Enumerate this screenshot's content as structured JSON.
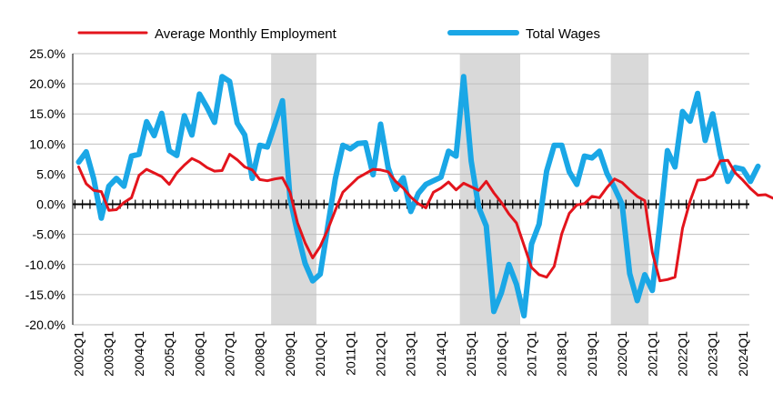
{
  "chart_data": {
    "type": "line",
    "title": "",
    "xlabel": "",
    "ylabel": "",
    "ylim": [
      -0.2,
      0.25
    ],
    "yticks": [
      "25.0%",
      "20.0%",
      "15.0%",
      "10.0%",
      "5.0%",
      "0.0%",
      "-5.0%",
      "-10.0%",
      "-15.0%",
      "-20.0%"
    ],
    "x_labels": [
      "2002Q1",
      "2003Q1",
      "2004Q1",
      "2005Q1",
      "2006Q1",
      "2007Q1",
      "2008Q1",
      "2009Q1",
      "2010Q1",
      "2011Q1",
      "2012Q1",
      "2013Q1",
      "2014Q1",
      "2015Q1",
      "2016Q1",
      "2017Q1",
      "2018Q1",
      "2019Q1",
      "2020Q1",
      "2021Q1",
      "2022Q1",
      "2023Q1",
      "2024Q1"
    ],
    "legend_position": "top",
    "grid": "horizontal",
    "recessions": [
      {
        "start": "2008Q3",
        "end": "2009Q4"
      },
      {
        "start": "2014Q4",
        "end": "2016Q3"
      },
      {
        "start": "2019Q4",
        "end": "2020Q4"
      }
    ],
    "series": [
      {
        "name": "Average Monthly Employment",
        "color": "#e3141c",
        "values": [
          0.062,
          0.034,
          0.023,
          0.021,
          -0.01,
          -0.009,
          0.003,
          0.011,
          0.048,
          0.058,
          0.052,
          0.046,
          0.033,
          0.052,
          0.065,
          0.076,
          0.07,
          0.061,
          0.055,
          0.056,
          0.083,
          0.074,
          0.062,
          0.057,
          0.041,
          0.039,
          0.042,
          0.044,
          0.02,
          -0.031,
          -0.064,
          -0.089,
          -0.07,
          -0.042,
          -0.01,
          0.02,
          0.032,
          0.044,
          0.051,
          0.058,
          0.057,
          0.054,
          0.038,
          0.027,
          0.012,
          0.001,
          -0.006,
          0.02,
          0.027,
          0.037,
          0.024,
          0.035,
          0.029,
          0.023,
          0.038,
          0.019,
          0.003,
          -0.016,
          -0.031,
          -0.068,
          -0.105,
          -0.117,
          -0.121,
          -0.103,
          -0.049,
          -0.015,
          -0.001,
          0.001,
          0.013,
          0.011,
          0.028,
          0.042,
          0.036,
          0.024,
          0.013,
          0.006,
          -0.08,
          -0.127,
          -0.125,
          -0.121,
          -0.04,
          0.005,
          0.04,
          0.041,
          0.048,
          0.072,
          0.073,
          0.052,
          0.04,
          0.026,
          0.015,
          0.016,
          0.01,
          0.012
        ]
      },
      {
        "name": "Total Wages",
        "color": "#1aa7e6",
        "values": [
          0.07,
          0.087,
          0.042,
          -0.023,
          0.03,
          0.043,
          0.03,
          0.08,
          0.083,
          0.137,
          0.114,
          0.151,
          0.089,
          0.081,
          0.147,
          0.115,
          0.183,
          0.161,
          0.136,
          0.212,
          0.204,
          0.135,
          0.115,
          0.043,
          0.098,
          0.095,
          0.133,
          0.172,
          0.01,
          -0.048,
          -0.098,
          -0.127,
          -0.116,
          -0.037,
          0.042,
          0.098,
          0.092,
          0.101,
          0.102,
          0.049,
          0.133,
          0.061,
          0.025,
          0.044,
          -0.012,
          0.018,
          0.033,
          0.039,
          0.045,
          0.088,
          0.08,
          0.212,
          0.072,
          -0.005,
          -0.036,
          -0.178,
          -0.147,
          -0.1,
          -0.133,
          -0.185,
          -0.066,
          -0.033,
          0.055,
          0.098,
          0.098,
          0.054,
          0.033,
          0.08,
          0.077,
          0.088,
          0.051,
          0.027,
          0.0,
          -0.115,
          -0.16,
          -0.117,
          -0.143,
          -0.033,
          0.089,
          0.062,
          0.154,
          0.138,
          0.184,
          0.106,
          0.15,
          0.083,
          0.038,
          0.061,
          0.058,
          0.038,
          0.063
        ]
      }
    ]
  }
}
